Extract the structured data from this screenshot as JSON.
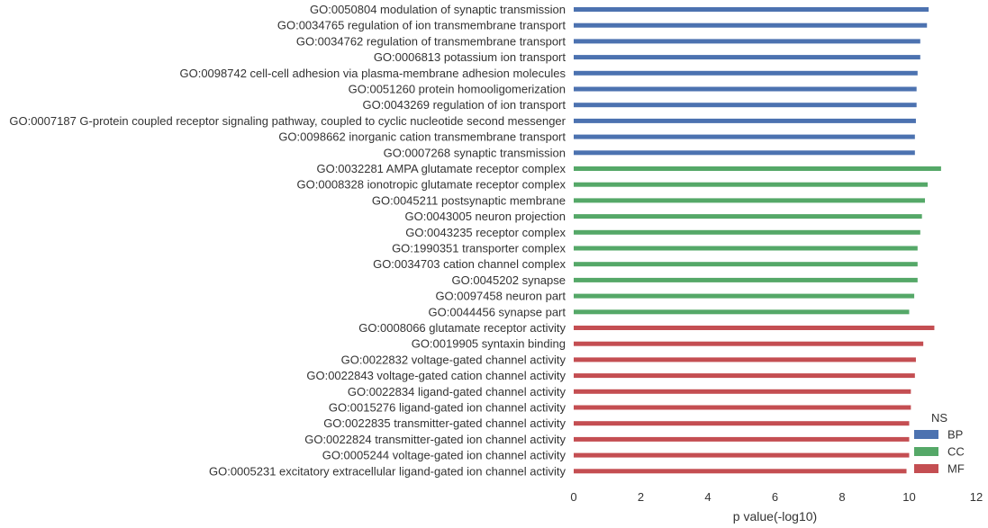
{
  "chart_data": {
    "type": "bar",
    "orientation": "horizontal",
    "xlabel": "p value(-log10)",
    "xlim": [
      0,
      12
    ],
    "xticks": [
      "0",
      "2",
      "4",
      "6",
      "8",
      "10",
      "12"
    ],
    "grid": false,
    "legend": {
      "title": "NS",
      "position": "bottom-right",
      "entries": [
        {
          "name": "BP",
          "color": "#4c72b0"
        },
        {
          "name": "CC",
          "color": "#55a868"
        },
        {
          "name": "MF",
          "color": "#c44e52"
        }
      ]
    },
    "bars": [
      {
        "label": "GO:0050804 modulation of synaptic transmission",
        "ns": "BP",
        "value": 10.58
      },
      {
        "label": "GO:0034765 regulation of ion transmembrane transport",
        "ns": "BP",
        "value": 10.53
      },
      {
        "label": "GO:0034762 regulation of transmembrane transport",
        "ns": "BP",
        "value": 10.33
      },
      {
        "label": "GO:0006813 potassium ion transport",
        "ns": "BP",
        "value": 10.33
      },
      {
        "label": "GO:0098742 cell-cell adhesion via plasma-membrane adhesion molecules",
        "ns": "BP",
        "value": 10.25
      },
      {
        "label": "GO:0051260 protein homooligomerization",
        "ns": "BP",
        "value": 10.22
      },
      {
        "label": "GO:0043269 regulation of ion transport",
        "ns": "BP",
        "value": 10.22
      },
      {
        "label": "GO:0007187 G-protein coupled receptor signaling pathway, coupled to cyclic nucleotide second messenger",
        "ns": "BP",
        "value": 10.2
      },
      {
        "label": "GO:0098662 inorganic cation transmembrane transport",
        "ns": "BP",
        "value": 10.17
      },
      {
        "label": "GO:0007268 synaptic transmission",
        "ns": "BP",
        "value": 10.17
      },
      {
        "label": "GO:0032281 AMPA glutamate receptor complex",
        "ns": "CC",
        "value": 10.95
      },
      {
        "label": "GO:0008328 ionotropic glutamate receptor complex",
        "ns": "CC",
        "value": 10.55
      },
      {
        "label": "GO:0045211 postsynaptic membrane",
        "ns": "CC",
        "value": 10.47
      },
      {
        "label": "GO:0043005 neuron projection",
        "ns": "CC",
        "value": 10.38
      },
      {
        "label": "GO:0043235 receptor complex",
        "ns": "CC",
        "value": 10.33
      },
      {
        "label": "GO:1990351 transporter complex",
        "ns": "CC",
        "value": 10.25
      },
      {
        "label": "GO:0034703 cation channel complex",
        "ns": "CC",
        "value": 10.25
      },
      {
        "label": "GO:0045202 synapse",
        "ns": "CC",
        "value": 10.25
      },
      {
        "label": "GO:0097458 neuron part",
        "ns": "CC",
        "value": 10.15
      },
      {
        "label": "GO:0044456 synapse part",
        "ns": "CC",
        "value": 10.0
      },
      {
        "label": "GO:0008066 glutamate receptor activity",
        "ns": "MF",
        "value": 10.75
      },
      {
        "label": "GO:0019905 syntaxin binding",
        "ns": "MF",
        "value": 10.42
      },
      {
        "label": "GO:0022832 voltage-gated channel activity",
        "ns": "MF",
        "value": 10.2
      },
      {
        "label": "GO:0022843 voltage-gated cation channel activity",
        "ns": "MF",
        "value": 10.17
      },
      {
        "label": "GO:0022834 ligand-gated channel activity",
        "ns": "MF",
        "value": 10.05
      },
      {
        "label": "GO:0015276 ligand-gated ion channel activity",
        "ns": "MF",
        "value": 10.05
      },
      {
        "label": "GO:0022835 transmitter-gated channel activity",
        "ns": "MF",
        "value": 10.0
      },
      {
        "label": "GO:0022824 transmitter-gated ion channel activity",
        "ns": "MF",
        "value": 10.0
      },
      {
        "label": "GO:0005244 voltage-gated ion channel activity",
        "ns": "MF",
        "value": 10.0
      },
      {
        "label": "GO:0005231 excitatory extracellular ligand-gated ion channel activity",
        "ns": "MF",
        "value": 9.92
      }
    ]
  }
}
